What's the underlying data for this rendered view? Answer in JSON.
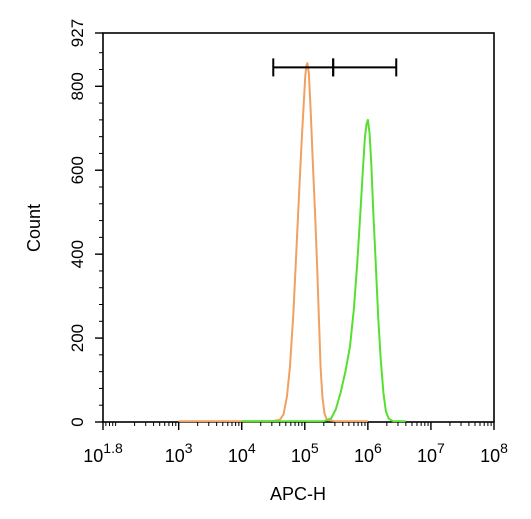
{
  "chart_data": {
    "type": "line",
    "title": "",
    "xlabel": "APC-H",
    "ylabel": "Count",
    "x_scale": "log",
    "xlim": [
      63.1,
      100000000
    ],
    "ylim": [
      0,
      927
    ],
    "x_ticks": [
      {
        "value": 63.1,
        "base": "10",
        "exp": "1.8"
      },
      {
        "value": 1000,
        "base": "10",
        "exp": "3"
      },
      {
        "value": 10000,
        "base": "10",
        "exp": "4"
      },
      {
        "value": 100000,
        "base": "10",
        "exp": "5"
      },
      {
        "value": 1000000,
        "base": "10",
        "exp": "6"
      },
      {
        "value": 10000000,
        "base": "10",
        "exp": "7"
      },
      {
        "value": 100000000,
        "base": "10",
        "exp": "8"
      }
    ],
    "y_ticks": [
      0,
      200,
      400,
      600,
      800,
      927
    ],
    "grid": false,
    "legend": "none",
    "gate_markers": [
      {
        "from": 31623,
        "to": 281838
      },
      {
        "from": 281838,
        "to": 2818383
      }
    ],
    "gate_y": 845,
    "series": [
      {
        "color": "#f0a060",
        "x": [
          1000,
          10000,
          30000,
          40000,
          46000,
          52000,
          58000,
          66000,
          74000,
          82000,
          90000,
          97000,
          102000,
          106000,
          110000,
          116000,
          124000,
          134000,
          146000,
          158000,
          168000,
          178000,
          190000,
          205000,
          225000,
          300000,
          1000000
        ],
        "y": [
          2,
          2,
          2,
          5,
          18,
          60,
          130,
          260,
          420,
          560,
          680,
          770,
          825,
          850,
          855,
          830,
          740,
          620,
          490,
          360,
          240,
          130,
          60,
          20,
          5,
          2,
          2
        ]
      },
      {
        "color": "#55e030",
        "x": [
          10000,
          100000,
          200000,
          260000,
          310000,
          370000,
          440000,
          520000,
          600000,
          680000,
          760000,
          840000,
          900000,
          950000,
          1000000,
          1060000,
          1130000,
          1220000,
          1330000,
          1460000,
          1600000,
          1760000,
          1930000,
          2150000,
          2500000,
          4000000
        ],
        "y": [
          2,
          2,
          2,
          8,
          30,
          70,
          120,
          180,
          270,
          380,
          500,
          610,
          680,
          710,
          720,
          690,
          620,
          500,
          380,
          250,
          150,
          70,
          25,
          8,
          2,
          2
        ]
      }
    ]
  }
}
